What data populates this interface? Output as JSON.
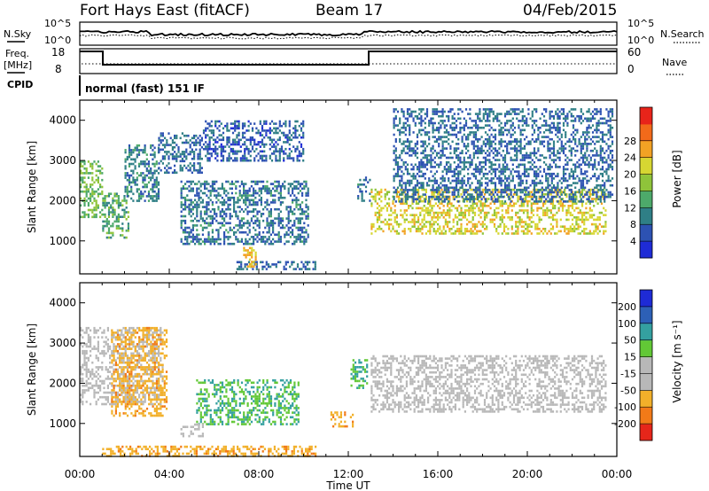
{
  "header": {
    "station": "Fort Hays East (fitACF)",
    "beam": "Beam 17",
    "date": "04/Feb/2015"
  },
  "top_panels": {
    "nsky_label": "N.Sky",
    "nsearch_label": "N.Search",
    "nsky_ticks": [
      "10^5",
      "10^0"
    ],
    "nsearch_ticks": [
      "10^5",
      "10^0"
    ],
    "freq_label": "Freq.",
    "freq_unit": "[MHz]",
    "freq_ticks": [
      "18",
      "8"
    ],
    "nave_label": "Nave",
    "nave_ticks": [
      "60",
      "0"
    ],
    "cpid_label": "CPID",
    "cpid_value": "normal (fast) 151 IF"
  },
  "x_axis": {
    "label": "Time UT",
    "ticks": [
      "00:00",
      "04:00",
      "08:00",
      "12:00",
      "16:00",
      "20:00",
      "00:00"
    ]
  },
  "chart_data": [
    {
      "type": "heatmap",
      "panel": "power",
      "ylabel": "Slant Range [km]",
      "y_ticks": [
        1000,
        2000,
        3000,
        4000
      ],
      "ylim": [
        180,
        4500
      ],
      "xlim_hours": [
        0,
        24
      ],
      "colorbar": {
        "label": "Power [dB]",
        "ticks": [
          "4",
          "8",
          "12",
          "16",
          "20",
          "24",
          "28"
        ],
        "colors": [
          "#1e2bd6",
          "#2d52b2",
          "#2f7f86",
          "#4da96a",
          "#8fc43a",
          "#d6d632",
          "#f2a224",
          "#f26a1a",
          "#e8241a"
        ]
      },
      "regions": [
        {
          "t0": 0.0,
          "t1": 1.0,
          "r0": 1600,
          "r1": 3000,
          "value": 16
        },
        {
          "t0": 1.0,
          "t1": 2.2,
          "r0": 1100,
          "r1": 2200,
          "value": 14
        },
        {
          "t0": 2.0,
          "t1": 3.5,
          "r0": 2000,
          "r1": 3400,
          "value": 10
        },
        {
          "t0": 3.5,
          "t1": 5.5,
          "r0": 2700,
          "r1": 3700,
          "value": 8
        },
        {
          "t0": 4.5,
          "t1": 10.2,
          "r0": 900,
          "r1": 2500,
          "value": 9
        },
        {
          "t0": 5.5,
          "t1": 10.0,
          "r0": 3000,
          "r1": 4000,
          "value": 7
        },
        {
          "t0": 7.0,
          "t1": 10.5,
          "r0": 300,
          "r1": 500,
          "value": 8
        },
        {
          "t0": 7.3,
          "t1": 7.9,
          "r0": 350,
          "r1": 850,
          "value": 24
        },
        {
          "t0": 12.4,
          "t1": 13.0,
          "r0": 2000,
          "r1": 2600,
          "value": 10
        },
        {
          "t0": 13.0,
          "t1": 23.5,
          "r0": 1200,
          "r1": 2300,
          "value": 22
        },
        {
          "t0": 14.0,
          "t1": 23.8,
          "r0": 2000,
          "r1": 4300,
          "value": 8
        }
      ]
    },
    {
      "type": "heatmap",
      "panel": "velocity",
      "ylabel": "Slant Range [km]",
      "y_ticks": [
        1000,
        2000,
        3000,
        4000
      ],
      "ylim": [
        180,
        4500
      ],
      "xlim_hours": [
        0,
        24
      ],
      "colorbar": {
        "label": "Velocity [m s⁻¹]",
        "ticks": [
          "200",
          "100",
          "50",
          "15",
          "-15",
          "-50",
          "-100",
          "-200"
        ],
        "colors": [
          "#1e2bd6",
          "#2d60b6",
          "#34a0a0",
          "#62c836",
          "#b8b8b8",
          "#b8b8b8",
          "#f2b02a",
          "#f27a18",
          "#e6261a"
        ]
      },
      "regions": [
        {
          "t0": 0.0,
          "t1": 3.7,
          "r0": 1500,
          "r1": 3400,
          "value": 0
        },
        {
          "t0": 1.4,
          "t1": 3.9,
          "r0": 1200,
          "r1": 3400,
          "value": -40
        },
        {
          "t0": 5.2,
          "t1": 9.8,
          "r0": 1000,
          "r1": 2100,
          "value": 30
        },
        {
          "t0": 12.1,
          "t1": 12.8,
          "r0": 1900,
          "r1": 2600,
          "value": 30
        },
        {
          "t0": 13.0,
          "t1": 23.5,
          "r0": 1300,
          "r1": 2700,
          "value": 0
        },
        {
          "t0": 4.5,
          "t1": 5.5,
          "r0": 700,
          "r1": 1000,
          "value": 0
        },
        {
          "t0": 1.0,
          "t1": 10.5,
          "r0": 200,
          "r1": 450,
          "value": -40
        },
        {
          "t0": 11.2,
          "t1": 12.2,
          "r0": 950,
          "r1": 1300,
          "value": -40
        }
      ]
    }
  ]
}
